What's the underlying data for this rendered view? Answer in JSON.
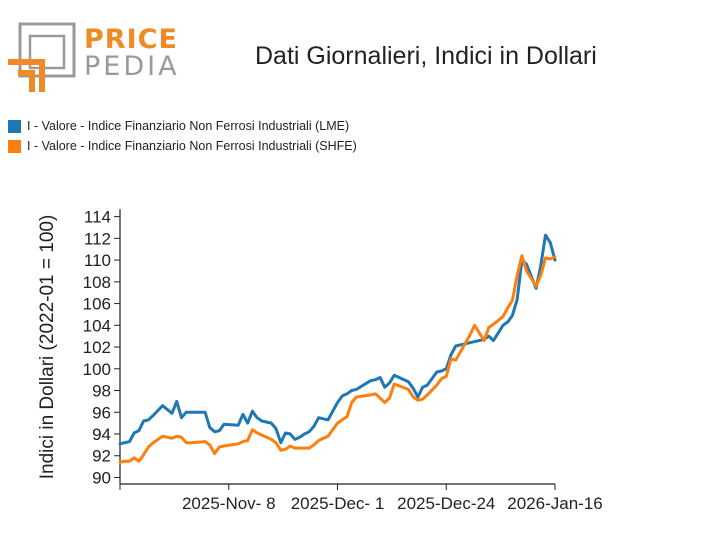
{
  "brand": {
    "word1": "PRICE",
    "word2": "PEDIA",
    "orange": "#f08a24",
    "gray": "#9a9a9a"
  },
  "chart_data": {
    "type": "line",
    "title": "Dati Giornalieri, Indici in Dollari",
    "xlabel": "",
    "ylabel": "Indici in Dollari (2022-01 = 100)",
    "x_tick_labels": [
      "2025-Nov- 8",
      "2025-Dec- 1",
      "2025-Dec-24",
      "2026-Jan-16"
    ],
    "x_tick_dates": [
      "2025-11-08",
      "2025-12-01",
      "2025-12-24",
      "2026-01-16"
    ],
    "xlim": [
      "2025-10-16",
      "2026-01-16"
    ],
    "y_ticks": [
      90,
      92,
      94,
      96,
      98,
      100,
      102,
      104,
      106,
      108,
      110,
      112,
      114
    ],
    "ylim": [
      89.4,
      114.7
    ],
    "grid": false,
    "legend_position": "top-left",
    "series": [
      {
        "name": "I - Valore - Indice Finanziario Non Ferrosi Industriali (LME)",
        "color": "#1f77b4",
        "x": [
          "2025-10-16",
          "2025-10-17",
          "2025-10-18",
          "2025-10-19",
          "2025-10-20",
          "2025-10-21",
          "2025-10-22",
          "2025-10-23",
          "2025-10-25",
          "2025-10-27",
          "2025-10-28",
          "2025-10-29",
          "2025-10-30",
          "2025-10-31",
          "2025-11-03",
          "2025-11-04",
          "2025-11-05",
          "2025-11-06",
          "2025-11-07",
          "2025-11-10",
          "2025-11-11",
          "2025-11-12",
          "2025-11-13",
          "2025-11-14",
          "2025-11-15",
          "2025-11-17",
          "2025-11-18",
          "2025-11-19",
          "2025-11-20",
          "2025-11-21",
          "2025-11-22",
          "2025-11-23",
          "2025-11-24",
          "2025-11-25",
          "2025-11-26",
          "2025-11-27",
          "2025-11-29",
          "2025-12-01",
          "2025-12-02",
          "2025-12-03",
          "2025-12-04",
          "2025-12-05",
          "2025-12-08",
          "2025-12-09",
          "2025-12-10",
          "2025-12-11",
          "2025-12-12",
          "2025-12-13",
          "2025-12-16",
          "2025-12-17",
          "2025-12-18",
          "2025-12-19",
          "2025-12-20",
          "2025-12-22",
          "2025-12-23",
          "2025-12-24",
          "2025-12-25",
          "2025-12-26",
          "2025-12-29",
          "2025-12-30",
          "2026-01-01",
          "2026-01-02",
          "2026-01-03",
          "2026-01-05",
          "2026-01-06",
          "2026-01-07",
          "2026-01-08",
          "2026-01-09",
          "2026-01-10",
          "2026-01-12",
          "2026-01-13",
          "2026-01-14",
          "2026-01-15",
          "2026-01-16"
        ],
        "values": [
          93.1,
          93.2,
          93.3,
          94.1,
          94.3,
          95.2,
          95.3,
          95.7,
          96.6,
          95.9,
          97.0,
          95.5,
          96.0,
          96.0,
          96.0,
          94.6,
          94.2,
          94.3,
          94.9,
          94.8,
          95.8,
          95.0,
          96.1,
          95.5,
          95.2,
          95.0,
          94.5,
          93.2,
          94.1,
          94.0,
          93.5,
          93.7,
          94.0,
          94.2,
          94.7,
          95.5,
          95.3,
          96.9,
          97.5,
          97.7,
          98.0,
          98.1,
          98.9,
          99.0,
          99.2,
          98.3,
          98.7,
          99.4,
          98.8,
          98.2,
          97.4,
          98.3,
          98.5,
          99.7,
          99.8,
          100.0,
          101.3,
          102.1,
          102.4,
          102.5,
          102.7,
          103.0,
          102.6,
          104.0,
          104.3,
          104.9,
          106.4,
          110.0,
          109.6,
          107.4,
          109.5,
          112.3,
          111.6,
          110.0
        ]
      },
      {
        "name": "I - Valore - Indice Finanziario Non Ferrosi Industriali (SHFE)",
        "color": "#ff7f0e",
        "x": [
          "2025-10-16",
          "2025-10-17",
          "2025-10-18",
          "2025-10-19",
          "2025-10-20",
          "2025-10-21",
          "2025-10-22",
          "2025-10-23",
          "2025-10-25",
          "2025-10-27",
          "2025-10-28",
          "2025-10-29",
          "2025-10-30",
          "2025-10-31",
          "2025-11-03",
          "2025-11-04",
          "2025-11-05",
          "2025-11-06",
          "2025-11-07",
          "2025-11-10",
          "2025-11-11",
          "2025-11-12",
          "2025-11-13",
          "2025-11-14",
          "2025-11-15",
          "2025-11-17",
          "2025-11-18",
          "2025-11-19",
          "2025-11-20",
          "2025-11-21",
          "2025-11-22",
          "2025-11-23",
          "2025-11-24",
          "2025-11-25",
          "2025-11-26",
          "2025-11-27",
          "2025-11-29",
          "2025-12-01",
          "2025-12-02",
          "2025-12-03",
          "2025-12-04",
          "2025-12-05",
          "2025-12-08",
          "2025-12-09",
          "2025-12-10",
          "2025-12-11",
          "2025-12-12",
          "2025-12-13",
          "2025-12-16",
          "2025-12-17",
          "2025-12-18",
          "2025-12-19",
          "2025-12-20",
          "2025-12-22",
          "2025-12-23",
          "2025-12-24",
          "2025-12-25",
          "2025-12-26",
          "2025-12-29",
          "2025-12-30",
          "2026-01-01",
          "2026-01-02",
          "2026-01-03",
          "2026-01-05",
          "2026-01-06",
          "2026-01-07",
          "2026-01-08",
          "2026-01-09",
          "2026-01-10",
          "2026-01-12",
          "2026-01-13",
          "2026-01-14",
          "2026-01-15",
          "2026-01-16"
        ],
        "values": [
          91.4,
          91.5,
          91.5,
          91.8,
          91.5,
          92.1,
          92.8,
          93.2,
          93.8,
          93.6,
          93.8,
          93.7,
          93.2,
          93.2,
          93.3,
          93.0,
          92.2,
          92.8,
          92.9,
          93.1,
          93.3,
          93.4,
          94.4,
          94.1,
          93.9,
          93.5,
          93.2,
          92.5,
          92.6,
          92.9,
          92.7,
          92.7,
          92.7,
          92.7,
          93.0,
          93.4,
          93.8,
          95.0,
          95.3,
          95.6,
          96.9,
          97.4,
          97.6,
          97.7,
          97.3,
          96.9,
          97.3,
          98.6,
          98.1,
          97.4,
          97.1,
          97.2,
          97.6,
          98.5,
          99.1,
          99.3,
          100.9,
          100.8,
          103.1,
          104.0,
          102.6,
          103.8,
          104.1,
          104.8,
          105.6,
          106.3,
          108.6,
          110.4,
          109.0,
          107.6,
          108.6,
          110.2,
          110.1,
          110.3
        ]
      }
    ]
  }
}
